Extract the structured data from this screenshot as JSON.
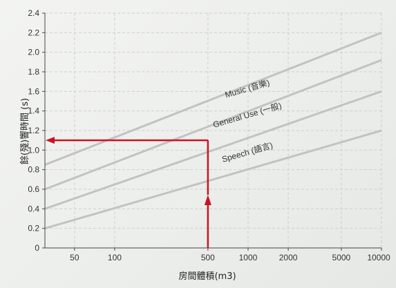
{
  "chart_data": {
    "type": "line",
    "x_scale": "log",
    "xlabel": "房間體積(m3)",
    "ylabel": "餘(殘)響時間 (s)",
    "xlim": [
      30,
      10000
    ],
    "ylim": [
      0,
      2.4
    ],
    "x_ticks": [
      50,
      100,
      500,
      1000,
      2000,
      5000,
      10000
    ],
    "x_tick_labels": [
      "50",
      "100",
      "500",
      "1000",
      "2000",
      "5000",
      "10000"
    ],
    "y_ticks": [
      0,
      0.2,
      0.4,
      0.6,
      0.8,
      1.0,
      1.2,
      1.4,
      1.6,
      1.8,
      2.0,
      2.2,
      2.4
    ],
    "y_tick_labels": [
      "0",
      "0.2",
      "0.4",
      "0.6",
      "0.8",
      "1.0",
      "1.2",
      "1.4",
      "1.6",
      "1.8",
      "2.0",
      "2.2",
      "2.4"
    ],
    "grid": true,
    "series": [
      {
        "name": "",
        "x": [
          30,
          10000
        ],
        "y": [
          0.2,
          1.2
        ]
      },
      {
        "name": "",
        "x": [
          30,
          10000
        ],
        "y": [
          0.4,
          1.6
        ]
      },
      {
        "name": "",
        "x": [
          30,
          10000
        ],
        "y": [
          0.6,
          1.92
        ]
      },
      {
        "name": "",
        "x": [
          30,
          10000
        ],
        "y": [
          0.85,
          2.2
        ]
      }
    ],
    "series_labels": [
      {
        "text": "Speech (語言)",
        "x": 1000,
        "y": 0.95
      },
      {
        "text": "General Use (一般)",
        "x": 1000,
        "y": 1.33
      },
      {
        "text": "Music (音樂)",
        "x": 1000,
        "y": 1.6
      }
    ],
    "annotation": {
      "type": "lookup-arrow",
      "x": 500,
      "y": 1.1,
      "color": "#cc1122"
    },
    "colors": {
      "series": "#c2c2c2",
      "grid": "#cfcfcf",
      "arrow": "#cc1122"
    }
  }
}
